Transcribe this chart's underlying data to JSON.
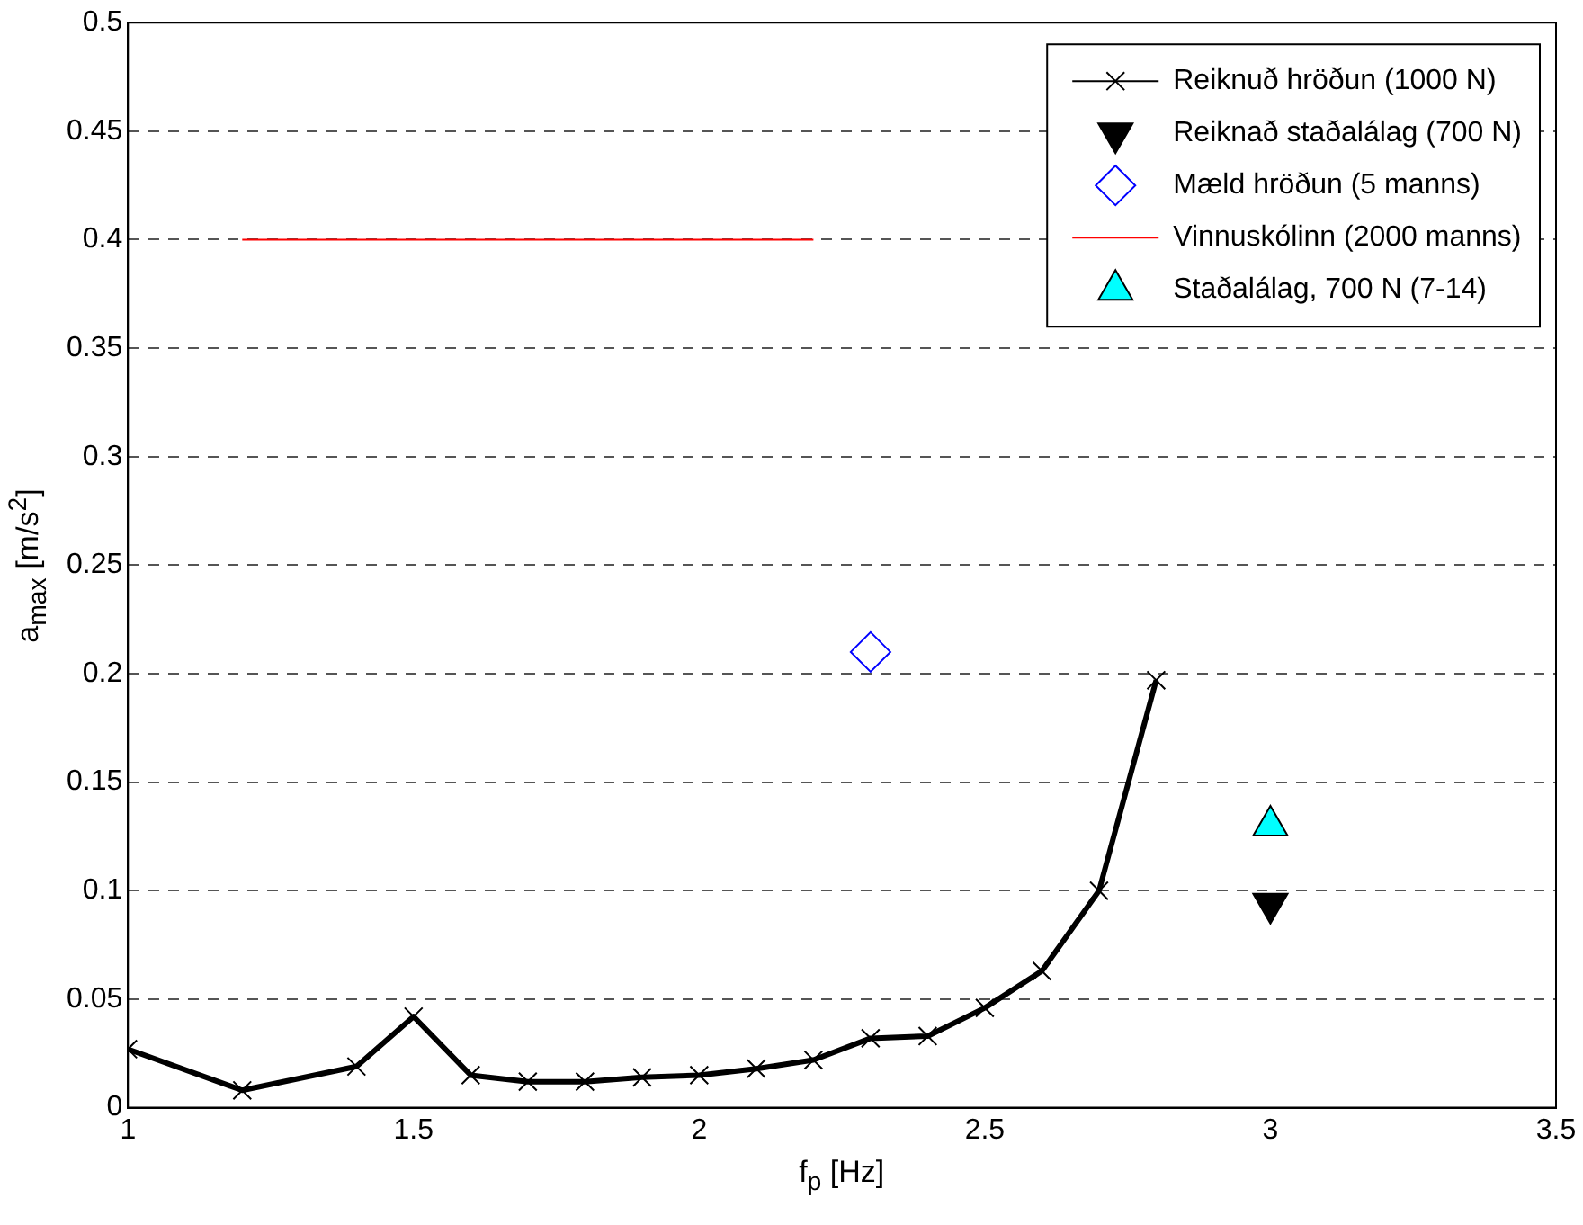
{
  "chart_data": {
    "type": "line",
    "xlabel": "f$_{p}$ [Hz]",
    "ylabel": "a$_{max}$ [m/s$^{2}$]",
    "xlim": [
      1,
      3.5
    ],
    "xticks": [
      1,
      1.5,
      2,
      2.5,
      3,
      3.5
    ],
    "ylim": [
      0,
      0.5
    ],
    "yticks": [
      0,
      0.05,
      0.1,
      0.15,
      0.2,
      0.25,
      0.3,
      0.35,
      0.4,
      0.45,
      0.5
    ],
    "grid": "y",
    "legend": "top right",
    "series": [
      {
        "name": "Reiknuð hröðun (1000 N)",
        "color": "#000000",
        "marker": "cross",
        "line_style": "solid",
        "x": [
          1,
          1.2,
          1.4,
          1.5,
          1.6,
          1.7,
          1.8,
          1.9,
          2,
          2.1,
          2.2,
          2.3,
          2.4,
          2.5,
          2.6,
          2.7,
          2.8
        ],
        "values": [
          0.027,
          0.008,
          0.019,
          0.042,
          0.015,
          0.012,
          0.012,
          0.014,
          0.015,
          0.018,
          0.022,
          0.032,
          0.033,
          0.046,
          0.063,
          0.1,
          0.197
        ]
      },
      {
        "name": "Reiknað staðalálag (700 N)",
        "type": "scatter",
        "color": "#000000",
        "marker": "triangle-down",
        "x": [
          3
        ],
        "values": [
          0.094
        ]
      },
      {
        "name": "Mæld hröðun (5 manns)",
        "type": "scatter",
        "color": "#0000ff",
        "marker": "diamond",
        "x": [
          2.3
        ],
        "values": [
          0.21
        ]
      },
      {
        "name": "Vinnuskólinn (2000 manns)",
        "color": "#ff0000",
        "marker": "none",
        "line_style": "solid",
        "x": [
          1.2,
          2.2
        ],
        "values": [
          0.4,
          0.4
        ]
      },
      {
        "name": "Staðalálag, 700 N (7-14)",
        "type": "scatter",
        "color": "#00ffff",
        "marker": "triangle",
        "x": [
          3
        ],
        "values": [
          0.13
        ]
      }
    ]
  }
}
